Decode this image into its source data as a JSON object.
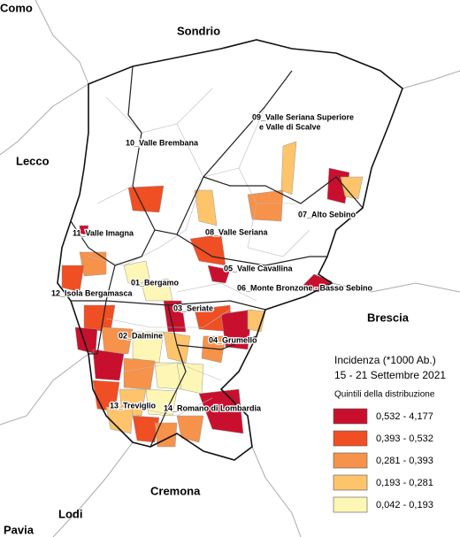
{
  "neighbors": [
    "Como",
    "Sondrio",
    "Lecco",
    "Brescia",
    "Cremona",
    "Lodi",
    "Pavia"
  ],
  "districts": [
    {
      "lines": [
        "10_Valle Brembana"
      ]
    },
    {
      "lines": [
        "09_Valle Seriana Superiore",
        "e Valle di Scalve"
      ]
    },
    {
      "lines": [
        "07_Alto Sebino"
      ]
    },
    {
      "lines": [
        "08_Valle Seriana"
      ]
    },
    {
      "lines": [
        "11_Valle Imagna"
      ]
    },
    {
      "lines": [
        "05_Valle Cavallina"
      ]
    },
    {
      "lines": [
        "01_Bergamo"
      ]
    },
    {
      "lines": [
        "06_Monte Bronzone - Basso Sebino"
      ]
    },
    {
      "lines": [
        "12_Isola Bergamasca"
      ]
    },
    {
      "lines": [
        "03_Seriate"
      ]
    },
    {
      "lines": [
        "02_Dalmine"
      ]
    },
    {
      "lines": [
        "04_Grumello"
      ]
    },
    {
      "lines": [
        "13_Treviglio"
      ]
    },
    {
      "lines": [
        "14_Romano di Lombardia"
      ]
    }
  ],
  "legend": {
    "title": "Incidenza (*1000 Ab.)",
    "subtitle": "15 - 21 Settembre 2021",
    "caption": "Quintili della distribuzione",
    "classes": [
      {
        "label": "0,532 - 4,177",
        "color": "#c8102e"
      },
      {
        "label": "0,393 - 0,532",
        "color": "#f04e23"
      },
      {
        "label": "0,281 - 0,393",
        "color": "#f7924a"
      },
      {
        "label": "0,193 - 0,281",
        "color": "#fdc46c"
      },
      {
        "label": "0,042 - 0,193",
        "color": "#fef6b4"
      }
    ]
  }
}
